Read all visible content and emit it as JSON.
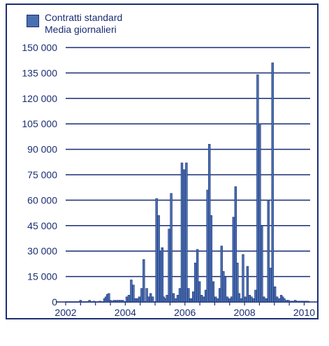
{
  "chart_data": {
    "type": "bar",
    "legend": {
      "entries": [
        "Contratti standard",
        "Media giornalieri"
      ],
      "placement": "top-left"
    },
    "xlabel": "",
    "ylabel": "",
    "ylim": [
      0,
      150000
    ],
    "y_ticks": [
      "0",
      "15 000",
      "30 000",
      "45 000",
      "60 000",
      "75 000",
      "90 000",
      "105 000",
      "120 000",
      "135 000",
      "150 000"
    ],
    "x_ticks": [
      "2002",
      "2004",
      "2006",
      "2008",
      "2010"
    ],
    "x_range": [
      2002.0,
      2010.2
    ],
    "grid": "horizontal",
    "colors": {
      "bar": "#4a70b2",
      "bar_edge": "#1a2e73",
      "grid": "#1a2e73",
      "text": "#1a2e73"
    },
    "series": [
      {
        "x": [
          2002.5,
          2002.8,
          2002.95,
          2003.15,
          2003.3,
          2003.35,
          2003.4,
          2003.45,
          2003.5,
          2003.55,
          2003.62,
          2003.7,
          2003.78,
          2003.85,
          2003.92,
          2004.05,
          2004.12,
          2004.2,
          2004.27,
          2004.33,
          2004.4,
          2004.47,
          2004.55,
          2004.62,
          2004.72,
          2004.78,
          2004.85,
          2004.92,
          2005.05,
          2005.12,
          2005.19,
          2005.24,
          2005.29,
          2005.34,
          2005.4,
          2005.47,
          2005.54,
          2005.62,
          2005.7,
          2005.76,
          2005.83,
          2005.9,
          2005.97,
          2006.05,
          2006.12,
          2006.2,
          2006.28,
          2006.35,
          2006.42,
          2006.49,
          2006.56,
          2006.63,
          2006.7,
          2006.76,
          2006.82,
          2006.88,
          2006.95,
          2007.03,
          2007.1,
          2007.17,
          2007.23,
          2007.29,
          2007.35,
          2007.42,
          2007.5,
          2007.57,
          2007.63,
          2007.7,
          2007.76,
          2007.82,
          2007.88,
          2007.95,
          2008.03,
          2008.1,
          2008.17,
          2008.23,
          2008.3,
          2008.37,
          2008.44,
          2008.51,
          2008.58,
          2008.65,
          2008.72,
          2008.8,
          2008.87,
          2008.94,
          2009.02,
          2009.09,
          2009.17,
          2009.23,
          2009.28,
          2009.33,
          2009.4,
          2009.47,
          2009.55,
          2009.63,
          2009.7,
          2009.77,
          2009.85,
          2009.91,
          2009.97,
          2010.05,
          2010.12
        ],
        "values": [
          1000,
          1000,
          500,
          500,
          2000,
          3000,
          4500,
          5000,
          1000,
          500,
          1000,
          1000,
          1000,
          1000,
          1000,
          3000,
          4000,
          13000,
          10000,
          2000,
          2000,
          3000,
          8000,
          25000,
          8000,
          3000,
          5000,
          3000,
          61000,
          51000,
          30000,
          32000,
          3000,
          2000,
          4000,
          43000,
          64000,
          5000,
          2000,
          4000,
          8000,
          82000,
          78000,
          82000,
          8000,
          2000,
          6000,
          23000,
          31000,
          12000,
          4000,
          3000,
          7000,
          66000,
          93000,
          51000,
          12000,
          3000,
          2000,
          8000,
          33000,
          18000,
          15000,
          3000,
          2000,
          3000,
          50000,
          68000,
          23000,
          5000,
          2000,
          28000,
          3000,
          21000,
          4000,
          3000,
          2000,
          7000,
          134000,
          105000,
          45000,
          3000,
          2000,
          60000,
          20000,
          141000,
          9000,
          3000,
          2000,
          4000,
          3000,
          2000,
          1000,
          1000,
          500,
          500,
          1000,
          500,
          500,
          500,
          500,
          500,
          500
        ]
      }
    ]
  }
}
